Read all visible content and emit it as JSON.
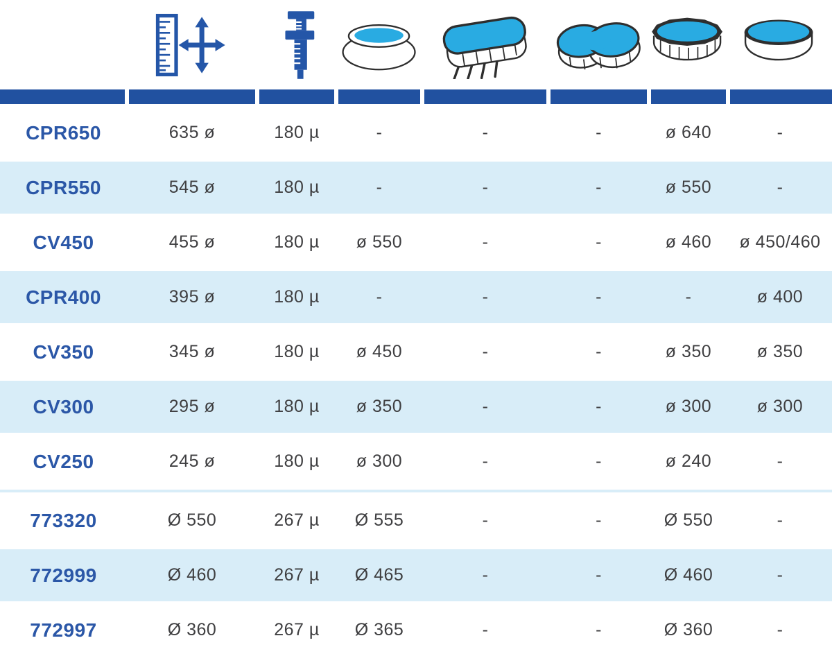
{
  "colors": {
    "primary_blue": "#2456a8",
    "bar_blue": "#2151a0",
    "label_blue": "#2b57a7",
    "row_light_blue": "#d8edf8",
    "value_text": "#3f3f41",
    "pool_water": "#29abe2",
    "pool_outline": "#2e2e2e"
  },
  "table": {
    "column_icons": [
      "ruler-dimensions-icon",
      "caliper-thickness-icon",
      "pool-round-softwall-icon",
      "pool-oval-icon",
      "pool-figure-eight-icon",
      "pool-round-frame-icon",
      "pool-round-steel-icon"
    ],
    "rows": [
      {
        "code": "CPR650",
        "shade": "white",
        "values": [
          "635 ø",
          "180 µ",
          "-",
          "-",
          "-",
          "ø 640",
          "-"
        ]
      },
      {
        "code": "CPR550",
        "shade": "blue",
        "values": [
          "545 ø",
          "180 µ",
          "-",
          "-",
          "-",
          "ø 550",
          "-"
        ]
      },
      {
        "code": "CV450",
        "shade": "white",
        "values": [
          "455 ø",
          "180 µ",
          "ø 550",
          "-",
          "-",
          "ø 460",
          "ø 450/460"
        ]
      },
      {
        "code": "CPR400",
        "shade": "blue",
        "values": [
          "395 ø",
          "180 µ",
          "-",
          "-",
          "-",
          "-",
          "ø 400"
        ]
      },
      {
        "code": "CV350",
        "shade": "white",
        "values": [
          "345 ø",
          "180 µ",
          "ø 450",
          "-",
          "-",
          "ø 350",
          "ø 350"
        ]
      },
      {
        "code": "CV300",
        "shade": "blue",
        "values": [
          "295 ø",
          "180 µ",
          "ø 350",
          "-",
          "-",
          "ø 300",
          "ø 300"
        ]
      },
      {
        "code": "CV250",
        "shade": "white",
        "values": [
          "245 ø",
          "180 µ",
          "ø 300",
          "-",
          "-",
          "ø 240",
          "-"
        ],
        "divider_after": true
      },
      {
        "code": "773320",
        "shade": "white",
        "values": [
          "Ø 550",
          "267 µ",
          "Ø 555",
          "-",
          "-",
          "Ø 550",
          "-"
        ]
      },
      {
        "code": "772999",
        "shade": "blue",
        "values": [
          "Ø 460",
          "267 µ",
          "Ø 465",
          "-",
          "-",
          "Ø 460",
          "-"
        ]
      },
      {
        "code": "772997",
        "shade": "white",
        "values": [
          "Ø 360",
          "267 µ",
          "Ø 365",
          "-",
          "-",
          "Ø 360",
          "-"
        ]
      }
    ]
  }
}
